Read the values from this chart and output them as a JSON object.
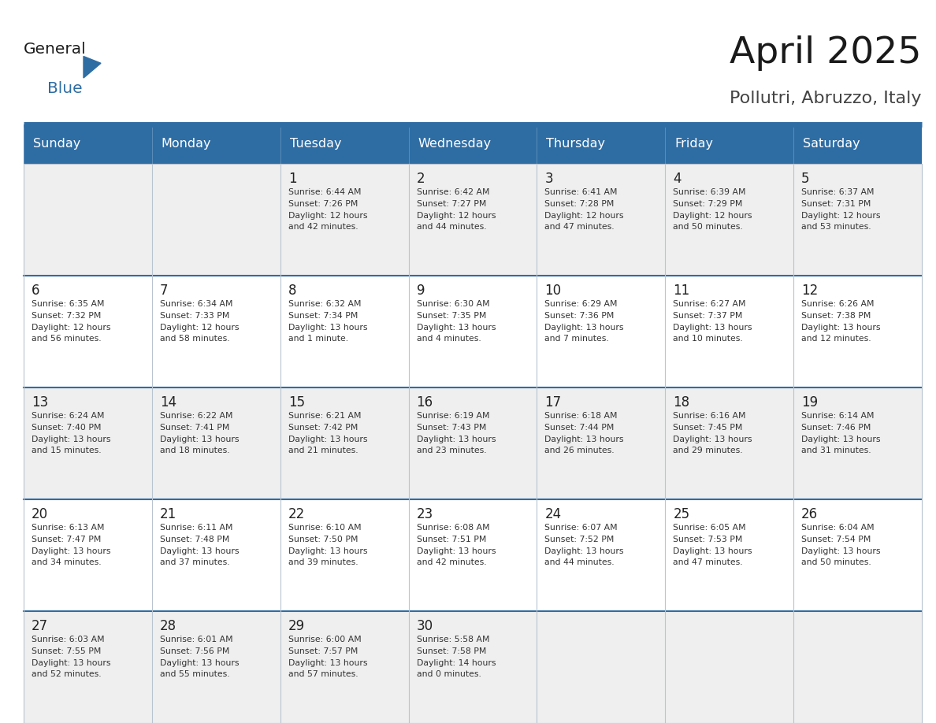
{
  "title": "April 2025",
  "subtitle": "Pollutri, Abruzzo, Italy",
  "days_of_week": [
    "Sunday",
    "Monday",
    "Tuesday",
    "Wednesday",
    "Thursday",
    "Friday",
    "Saturday"
  ],
  "header_bg": "#2E6DA4",
  "header_text": "#FFFFFF",
  "cell_bg_light": "#EFEFEF",
  "cell_bg_white": "#FFFFFF",
  "cell_border": "#B0B8C8",
  "day_number_color": "#222222",
  "cell_text_color": "#333333",
  "title_color": "#1a1a1a",
  "subtitle_color": "#444444",
  "header_line_color": "#2E6DA4",
  "calendar_data": [
    [
      {
        "day": null,
        "info": null
      },
      {
        "day": null,
        "info": null
      },
      {
        "day": 1,
        "info": "Sunrise: 6:44 AM\nSunset: 7:26 PM\nDaylight: 12 hours\nand 42 minutes."
      },
      {
        "day": 2,
        "info": "Sunrise: 6:42 AM\nSunset: 7:27 PM\nDaylight: 12 hours\nand 44 minutes."
      },
      {
        "day": 3,
        "info": "Sunrise: 6:41 AM\nSunset: 7:28 PM\nDaylight: 12 hours\nand 47 minutes."
      },
      {
        "day": 4,
        "info": "Sunrise: 6:39 AM\nSunset: 7:29 PM\nDaylight: 12 hours\nand 50 minutes."
      },
      {
        "day": 5,
        "info": "Sunrise: 6:37 AM\nSunset: 7:31 PM\nDaylight: 12 hours\nand 53 minutes."
      }
    ],
    [
      {
        "day": 6,
        "info": "Sunrise: 6:35 AM\nSunset: 7:32 PM\nDaylight: 12 hours\nand 56 minutes."
      },
      {
        "day": 7,
        "info": "Sunrise: 6:34 AM\nSunset: 7:33 PM\nDaylight: 12 hours\nand 58 minutes."
      },
      {
        "day": 8,
        "info": "Sunrise: 6:32 AM\nSunset: 7:34 PM\nDaylight: 13 hours\nand 1 minute."
      },
      {
        "day": 9,
        "info": "Sunrise: 6:30 AM\nSunset: 7:35 PM\nDaylight: 13 hours\nand 4 minutes."
      },
      {
        "day": 10,
        "info": "Sunrise: 6:29 AM\nSunset: 7:36 PM\nDaylight: 13 hours\nand 7 minutes."
      },
      {
        "day": 11,
        "info": "Sunrise: 6:27 AM\nSunset: 7:37 PM\nDaylight: 13 hours\nand 10 minutes."
      },
      {
        "day": 12,
        "info": "Sunrise: 6:26 AM\nSunset: 7:38 PM\nDaylight: 13 hours\nand 12 minutes."
      }
    ],
    [
      {
        "day": 13,
        "info": "Sunrise: 6:24 AM\nSunset: 7:40 PM\nDaylight: 13 hours\nand 15 minutes."
      },
      {
        "day": 14,
        "info": "Sunrise: 6:22 AM\nSunset: 7:41 PM\nDaylight: 13 hours\nand 18 minutes."
      },
      {
        "day": 15,
        "info": "Sunrise: 6:21 AM\nSunset: 7:42 PM\nDaylight: 13 hours\nand 21 minutes."
      },
      {
        "day": 16,
        "info": "Sunrise: 6:19 AM\nSunset: 7:43 PM\nDaylight: 13 hours\nand 23 minutes."
      },
      {
        "day": 17,
        "info": "Sunrise: 6:18 AM\nSunset: 7:44 PM\nDaylight: 13 hours\nand 26 minutes."
      },
      {
        "day": 18,
        "info": "Sunrise: 6:16 AM\nSunset: 7:45 PM\nDaylight: 13 hours\nand 29 minutes."
      },
      {
        "day": 19,
        "info": "Sunrise: 6:14 AM\nSunset: 7:46 PM\nDaylight: 13 hours\nand 31 minutes."
      }
    ],
    [
      {
        "day": 20,
        "info": "Sunrise: 6:13 AM\nSunset: 7:47 PM\nDaylight: 13 hours\nand 34 minutes."
      },
      {
        "day": 21,
        "info": "Sunrise: 6:11 AM\nSunset: 7:48 PM\nDaylight: 13 hours\nand 37 minutes."
      },
      {
        "day": 22,
        "info": "Sunrise: 6:10 AM\nSunset: 7:50 PM\nDaylight: 13 hours\nand 39 minutes."
      },
      {
        "day": 23,
        "info": "Sunrise: 6:08 AM\nSunset: 7:51 PM\nDaylight: 13 hours\nand 42 minutes."
      },
      {
        "day": 24,
        "info": "Sunrise: 6:07 AM\nSunset: 7:52 PM\nDaylight: 13 hours\nand 44 minutes."
      },
      {
        "day": 25,
        "info": "Sunrise: 6:05 AM\nSunset: 7:53 PM\nDaylight: 13 hours\nand 47 minutes."
      },
      {
        "day": 26,
        "info": "Sunrise: 6:04 AM\nSunset: 7:54 PM\nDaylight: 13 hours\nand 50 minutes."
      }
    ],
    [
      {
        "day": 27,
        "info": "Sunrise: 6:03 AM\nSunset: 7:55 PM\nDaylight: 13 hours\nand 52 minutes."
      },
      {
        "day": 28,
        "info": "Sunrise: 6:01 AM\nSunset: 7:56 PM\nDaylight: 13 hours\nand 55 minutes."
      },
      {
        "day": 29,
        "info": "Sunrise: 6:00 AM\nSunset: 7:57 PM\nDaylight: 13 hours\nand 57 minutes."
      },
      {
        "day": 30,
        "info": "Sunrise: 5:58 AM\nSunset: 7:58 PM\nDaylight: 14 hours\nand 0 minutes."
      },
      {
        "day": null,
        "info": null
      },
      {
        "day": null,
        "info": null
      },
      {
        "day": null,
        "info": null
      }
    ]
  ]
}
